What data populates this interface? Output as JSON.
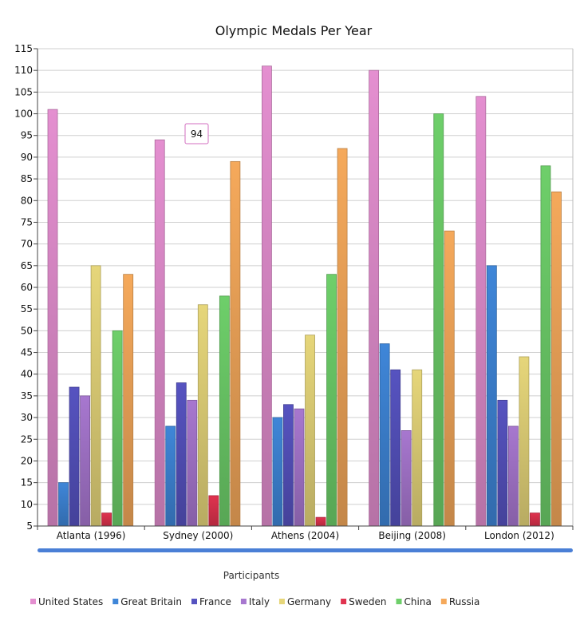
{
  "chart_data": {
    "type": "bar",
    "title": "Olympic Medals Per Year",
    "xlabel": "",
    "ylabel": "",
    "ylim": [
      5,
      115
    ],
    "ytick_step": 5,
    "grid": true,
    "legend_title": "Participants",
    "legend_position": "bottom-left",
    "categories": [
      "Atlanta (1996)",
      "Sydney (2000)",
      "Athens (2004)",
      "Beijing (2008)",
      "London (2012)"
    ],
    "series": [
      {
        "name": "United States",
        "color": "#e48fd0",
        "values": [
          101,
          94,
          111,
          110,
          104
        ]
      },
      {
        "name": "Great Britain",
        "color": "#3f86d8",
        "values": [
          15,
          28,
          30,
          47,
          65
        ]
      },
      {
        "name": "France",
        "color": "#5653c0",
        "values": [
          37,
          38,
          33,
          41,
          34
        ]
      },
      {
        "name": "Italy",
        "color": "#a777cf",
        "values": [
          35,
          34,
          32,
          27,
          28
        ]
      },
      {
        "name": "Germany",
        "color": "#e6d67a",
        "values": [
          65,
          56,
          49,
          41,
          44
        ]
      },
      {
        "name": "Sweden",
        "color": "#e0334f",
        "values": [
          8,
          12,
          7,
          5,
          8
        ]
      },
      {
        "name": "China",
        "color": "#6ecf6a",
        "values": [
          50,
          58,
          63,
          100,
          88
        ]
      },
      {
        "name": "Russia",
        "color": "#f5a95b",
        "values": [
          63,
          89,
          92,
          73,
          82
        ]
      }
    ],
    "tooltip": {
      "text": "94",
      "series": "United States",
      "category": "Sydney (2000)"
    }
  }
}
